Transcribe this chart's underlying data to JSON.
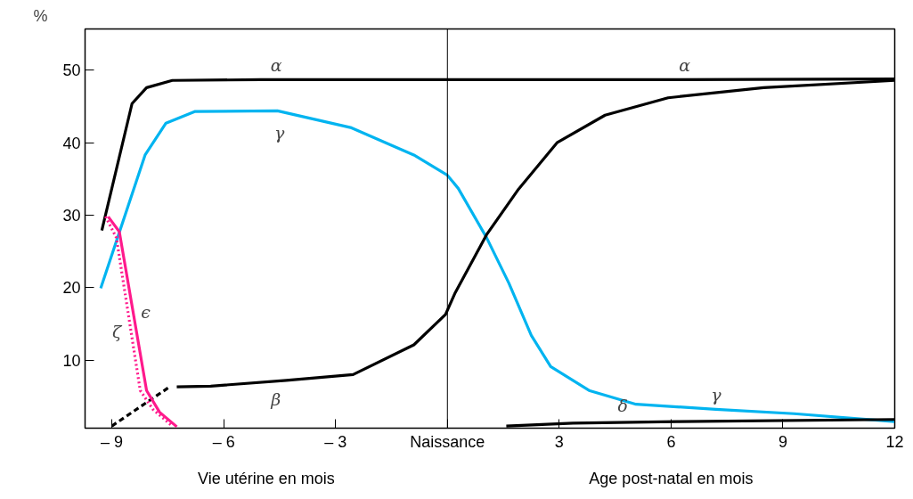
{
  "chart_data": {
    "type": "line",
    "ylabel": "%",
    "xlim": [
      -9.72,
      12
    ],
    "ylim": [
      0.6,
      55.7
    ],
    "xticks": [
      {
        "value": -9,
        "label": "– 9"
      },
      {
        "value": -6,
        "label": "– 6"
      },
      {
        "value": -3,
        "label": "– 3"
      },
      {
        "value": 0,
        "label": "Naissance"
      },
      3,
      6,
      9,
      12
    ],
    "yticks": [
      10,
      20,
      30,
      40,
      50
    ],
    "grid": false,
    "legend": false,
    "marker": "none",
    "ref_lines": [
      {
        "axis": "x",
        "value": 0,
        "color": "#000000"
      }
    ],
    "series": [
      {
        "name": "α",
        "color": "#000000",
        "line_style": "solid",
        "x": [
          -9.27,
          -8.46,
          -8.07,
          -7.38,
          -5,
          0,
          6,
          12
        ],
        "values": [
          27.9,
          45.4,
          47.6,
          48.6,
          48.7,
          48.7,
          48.7,
          48.8
        ]
      },
      {
        "name": "γ",
        "color": "#00b4f0",
        "line_style": "solid",
        "x": [
          -9.3,
          -8.11,
          -7.55,
          -6.78,
          -4.56,
          -2.6,
          -0.9,
          0,
          0.29,
          1.05,
          1.65,
          2.25,
          2.77,
          3.8,
          5.06,
          7.2,
          9.3,
          12
        ],
        "values": [
          19.9,
          38.3,
          42.7,
          44.3,
          44.4,
          42.1,
          38.3,
          35.5,
          33.7,
          26.9,
          20.6,
          13.4,
          9.1,
          5.8,
          3.9,
          3.2,
          2.6,
          1.5
        ]
      },
      {
        "color": "#000000",
        "line_style": "dashed",
        "x": [
          -9.0,
          -7.48
        ],
        "values": [
          0.9,
          6.2
        ]
      },
      {
        "name": "β",
        "color": "#000000",
        "line_style": "solid",
        "x": [
          -7.26,
          -6.35,
          -4.32,
          -2.53,
          -0.9,
          -0.05,
          0.21,
          1.05,
          1.91,
          2.94,
          4.23,
          5.92,
          8.48,
          12
        ],
        "values": [
          6.3,
          6.4,
          7.2,
          8.0,
          12.1,
          16.3,
          19.3,
          27.3,
          33.6,
          40.0,
          43.8,
          46.2,
          47.6,
          48.6
        ]
      },
      {
        "name": "ϵ",
        "color": "#ff1a8c",
        "line_style": "solid",
        "x": [
          -9.1,
          -8.8,
          -8.07,
          -7.72,
          -7.26
        ],
        "values": [
          29.8,
          27.7,
          5.8,
          2.8,
          0.8
        ]
      },
      {
        "name": "ζ",
        "color": "#ff1a8c",
        "line_style": "dotted",
        "x": [
          -9.17,
          -8.88,
          -8.24,
          -7.9,
          -7.38
        ],
        "values": [
          29.8,
          26.9,
          5.8,
          3.2,
          0.9
        ]
      },
      {
        "name": "δ",
        "color": "#000000",
        "line_style": "solid",
        "x": [
          1.58,
          3.37,
          6.16,
          12
        ],
        "values": [
          0.9,
          1.3,
          1.5,
          1.8
        ]
      }
    ],
    "annotations": [
      "Vie utérine en mois",
      "Age post-natal en mois"
    ]
  }
}
